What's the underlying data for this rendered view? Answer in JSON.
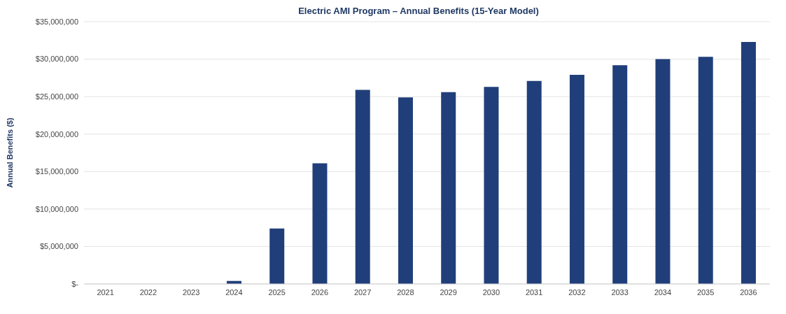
{
  "chart_data": {
    "type": "bar",
    "title": "Electric AMI Program – Annual Benefits (15-Year Model)",
    "ylabel": "Annual Benefits ($)",
    "categories": [
      "2021",
      "2022",
      "2023",
      "2024",
      "2025",
      "2026",
      "2027",
      "2028",
      "2029",
      "2030",
      "2031",
      "2032",
      "2033",
      "2034",
      "2035",
      "2036"
    ],
    "values": [
      0,
      0,
      0,
      400000,
      7400000,
      16100000,
      25900000,
      24900000,
      25600000,
      26300000,
      27100000,
      27900000,
      29200000,
      30000000,
      30300000,
      32300000
    ],
    "color": "#203f7a",
    "ylim": [
      0,
      35000000
    ],
    "yticks": [
      {
        "value": 0,
        "label": "$-"
      },
      {
        "value": 5000000,
        "label": "$5,000,000"
      },
      {
        "value": 10000000,
        "label": "$10,000,000"
      },
      {
        "value": 15000000,
        "label": "$15,000,000"
      },
      {
        "value": 20000000,
        "label": "$20,000,000"
      },
      {
        "value": 25000000,
        "label": "$25,000,000"
      },
      {
        "value": 30000000,
        "label": "$30,000,000"
      },
      {
        "value": 35000000,
        "label": "$35,000,000"
      }
    ],
    "grid": "y",
    "legend": false
  }
}
